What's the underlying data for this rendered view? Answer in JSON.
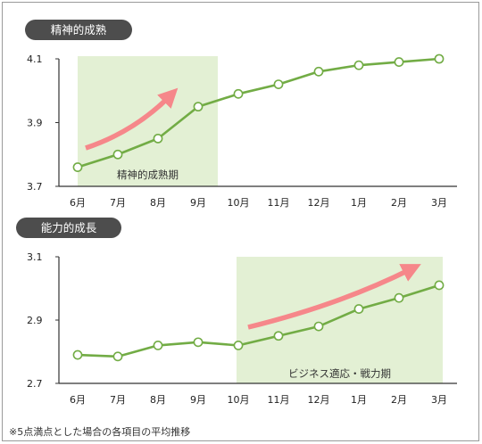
{
  "footnote": "※5点満点とした場合の各項目の平均推移",
  "colors": {
    "line": "#72ac45",
    "highlight": "#e3f0d4",
    "arrow": "#f6878a",
    "pill": "#4d4d4d"
  },
  "chart_data": [
    {
      "type": "line",
      "title": "精神的成熟",
      "categories": [
        "6月",
        "7月",
        "8月",
        "9月",
        "10月",
        "11月",
        "12月",
        "1月",
        "2月",
        "3月"
      ],
      "yticks": [
        "4.1",
        "3.9",
        "3.7"
      ],
      "ylim": [
        3.7,
        4.1
      ],
      "values": [
        3.76,
        3.8,
        3.85,
        3.95,
        3.99,
        4.02,
        4.06,
        4.08,
        4.09,
        4.1
      ],
      "highlight": {
        "label": "精神的成熟期",
        "from": "6月",
        "to": "9月"
      }
    },
    {
      "type": "line",
      "title": "能力的成長",
      "categories": [
        "6月",
        "7月",
        "8月",
        "9月",
        "10月",
        "11月",
        "12月",
        "1月",
        "2月",
        "3月"
      ],
      "yticks": [
        "3.1",
        "2.9",
        "2.7"
      ],
      "ylim": [
        2.7,
        3.1
      ],
      "values": [
        2.79,
        2.785,
        2.82,
        2.83,
        2.82,
        2.85,
        2.88,
        2.935,
        2.97,
        3.01
      ],
      "highlight": {
        "label": "ビジネス適応・戦力期",
        "from": "10月",
        "to": "3月"
      }
    }
  ]
}
